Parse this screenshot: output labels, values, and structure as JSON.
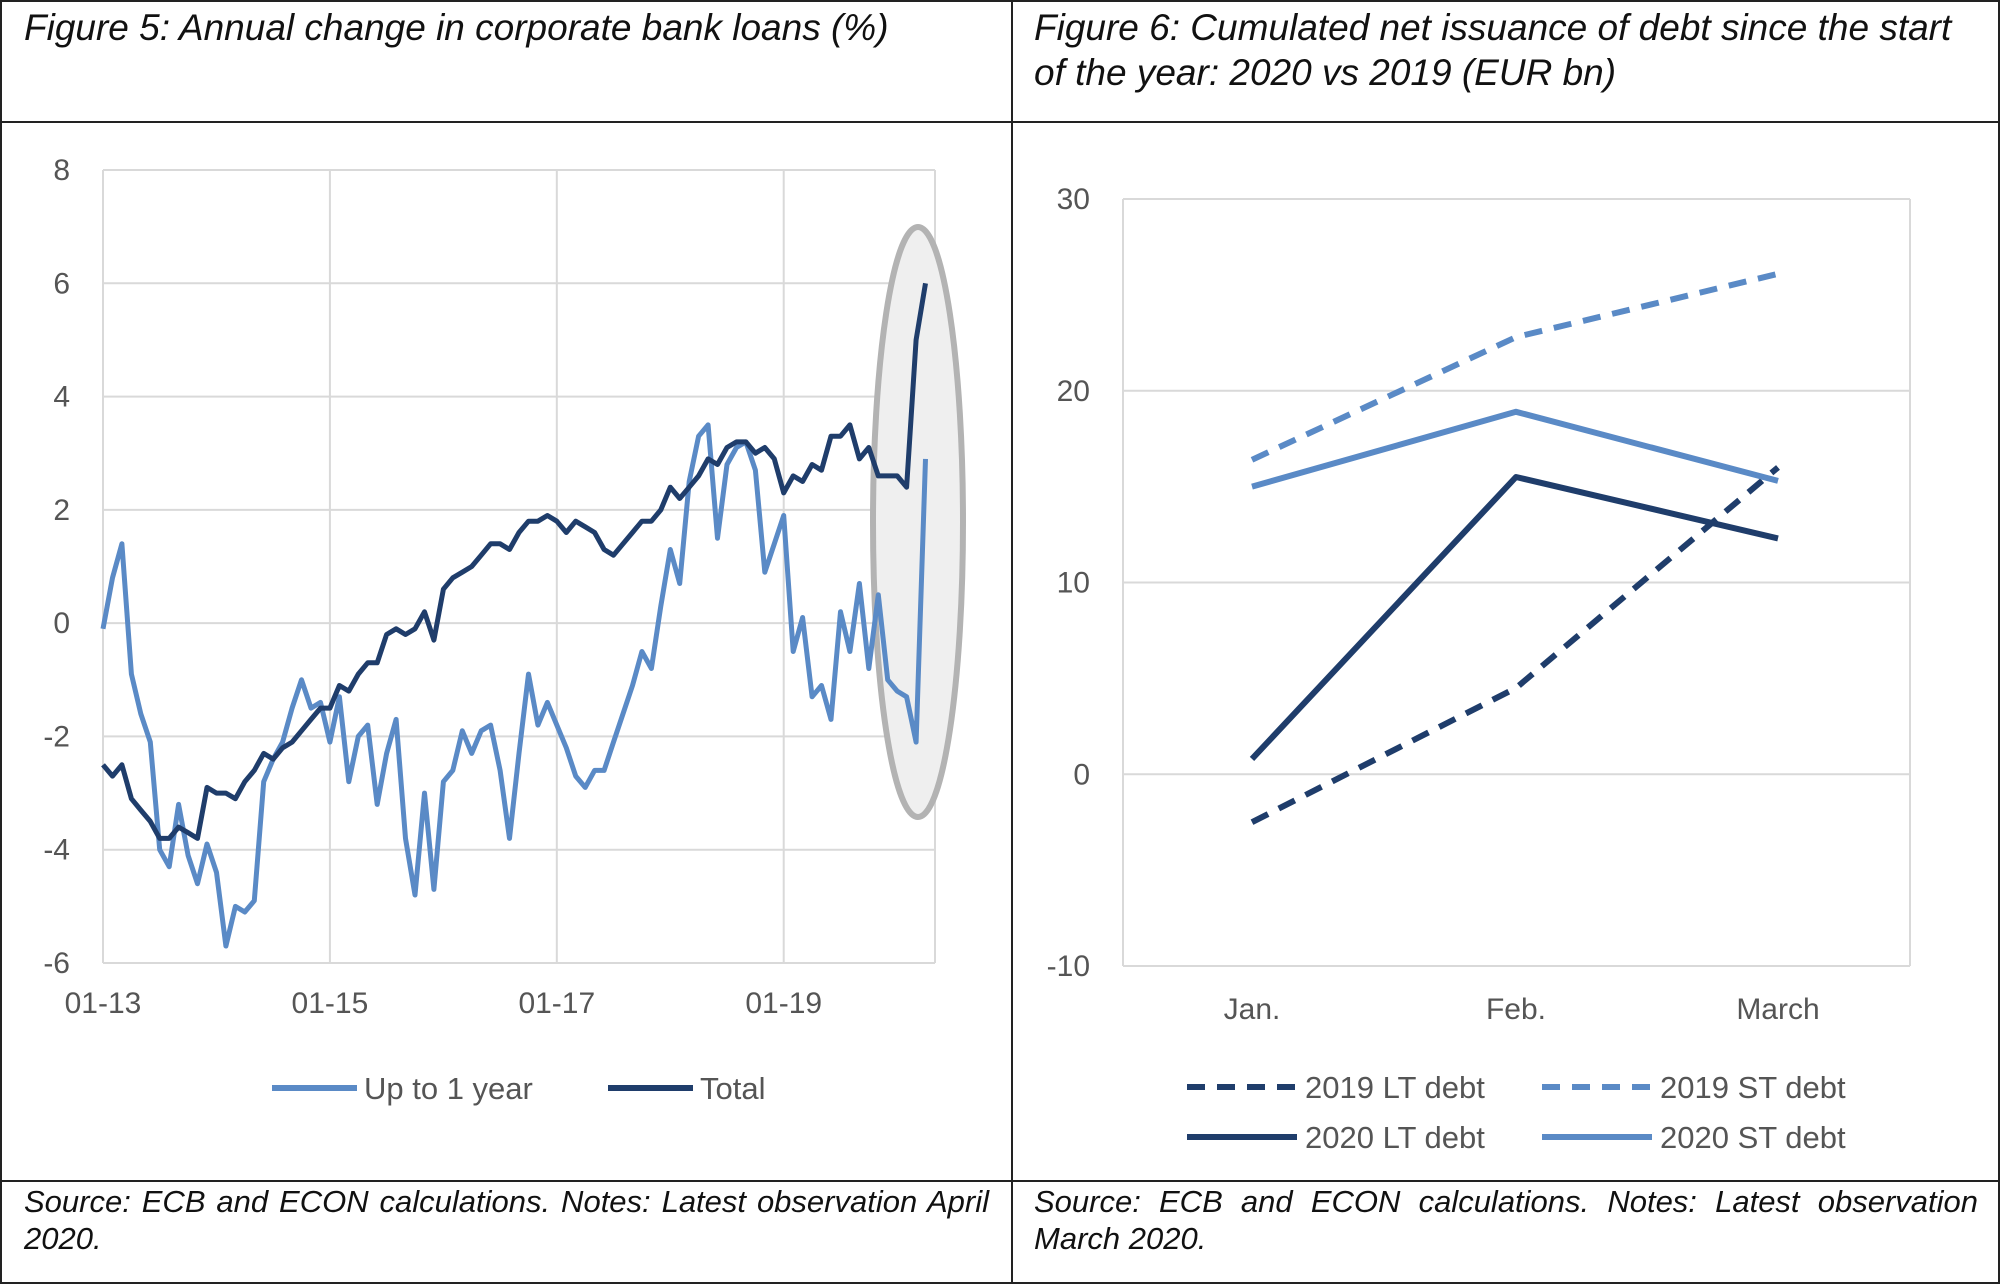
{
  "figure5": {
    "title": "Figure 5: Annual change in corporate bank loans (%)",
    "source": "Source: ECB and ECON calculations. Notes: Latest observation April 2020.",
    "chart_data": {
      "type": "line",
      "y_ticks": [
        "8",
        "6",
        "4",
        "2",
        "0",
        "-2",
        "-4",
        "-6"
      ],
      "ylim": [
        -6,
        8
      ],
      "x_tick_labels": [
        "01-13",
        "01-15",
        "01-17",
        "01-19"
      ],
      "x_range_months": [
        "2013-01",
        "2020-04"
      ],
      "grid": true,
      "legend_position": "bottom",
      "highlight": "ellipse around latest observations (2020)",
      "series": [
        {
          "name": "Up to 1 year",
          "color": "#5a8ac6",
          "values": [
            -0.1,
            0.8,
            1.4,
            -0.9,
            -1.6,
            -2.1,
            -4.0,
            -4.3,
            -3.2,
            -4.1,
            -4.6,
            -3.9,
            -4.4,
            -5.7,
            -5.0,
            -5.1,
            -4.9,
            -2.8,
            -2.4,
            -2.1,
            -1.5,
            -1.0,
            -1.5,
            -1.4,
            -2.1,
            -1.3,
            -2.8,
            -2.0,
            -1.8,
            -3.2,
            -2.3,
            -1.7,
            -3.8,
            -4.8,
            -3.0,
            -4.7,
            -2.8,
            -2.6,
            -1.9,
            -2.3,
            -1.9,
            -1.8,
            -2.6,
            -3.8,
            -2.3,
            -0.9,
            -1.8,
            -1.4,
            -1.8,
            -2.2,
            -2.7,
            -2.9,
            -2.6,
            -2.6,
            -2.1,
            -1.6,
            -1.1,
            -0.5,
            -0.8,
            0.3,
            1.3,
            0.7,
            2.5,
            3.3,
            3.5,
            1.5,
            2.8,
            3.1,
            3.2,
            2.7,
            0.9,
            1.4,
            1.9,
            -0.5,
            0.1,
            -1.3,
            -1.1,
            -1.7,
            0.2,
            -0.5,
            0.7,
            -0.8,
            0.5,
            -1.0,
            -1.2,
            -1.3,
            -2.1,
            2.9
          ],
          "note": "latest observation 2.9 (2020-04)"
        },
        {
          "name": "Total",
          "color": "#1f3d6b",
          "values": [
            -2.5,
            -2.7,
            -2.5,
            -3.1,
            -3.3,
            -3.5,
            -3.8,
            -3.8,
            -3.6,
            -3.7,
            -3.8,
            -2.9,
            -3.0,
            -3.0,
            -3.1,
            -2.8,
            -2.6,
            -2.3,
            -2.4,
            -2.2,
            -2.1,
            -1.9,
            -1.7,
            -1.5,
            -1.5,
            -1.1,
            -1.2,
            -0.9,
            -0.7,
            -0.7,
            -0.2,
            -0.1,
            -0.2,
            -0.1,
            0.2,
            -0.3,
            0.6,
            0.8,
            0.9,
            1.0,
            1.2,
            1.4,
            1.4,
            1.3,
            1.6,
            1.8,
            1.8,
            1.9,
            1.8,
            1.6,
            1.8,
            1.7,
            1.6,
            1.3,
            1.2,
            1.4,
            1.6,
            1.8,
            1.8,
            2.0,
            2.4,
            2.2,
            2.4,
            2.6,
            2.9,
            2.8,
            3.1,
            3.2,
            3.2,
            3.0,
            3.1,
            2.9,
            2.3,
            2.6,
            2.5,
            2.8,
            2.7,
            3.3,
            3.3,
            3.5,
            2.9,
            3.1,
            2.6,
            2.6,
            2.6,
            2.4,
            5.0,
            6.0
          ]
        }
      ]
    }
  },
  "figure6": {
    "title": "Figure 6: Cumulated net issuance of debt since the start of the year: 2020 vs 2019 (EUR bn)",
    "source": "Source: ECB and ECON calculations. Notes: Latest observation March 2020.",
    "chart_data": {
      "type": "line",
      "categories": [
        "Jan.",
        "Feb.",
        "March"
      ],
      "y_ticks": [
        "30",
        "20",
        "10",
        "0",
        "-10"
      ],
      "ylim": [
        -10,
        30
      ],
      "grid": true,
      "legend_position": "bottom",
      "series": [
        {
          "name": "2019 LT debt",
          "color": "#1f3d6b",
          "dashed": true,
          "values": [
            -2.5,
            4.5,
            16.0
          ]
        },
        {
          "name": "2019 ST debt",
          "color": "#5a8ac6",
          "dashed": true,
          "values": [
            16.4,
            22.8,
            26.1
          ]
        },
        {
          "name": "2020 LT debt",
          "color": "#1f3d6b",
          "dashed": false,
          "values": [
            0.8,
            15.5,
            12.3
          ]
        },
        {
          "name": "2020 ST debt",
          "color": "#5a8ac6",
          "dashed": false,
          "values": [
            15.0,
            18.9,
            15.3
          ]
        }
      ]
    }
  }
}
